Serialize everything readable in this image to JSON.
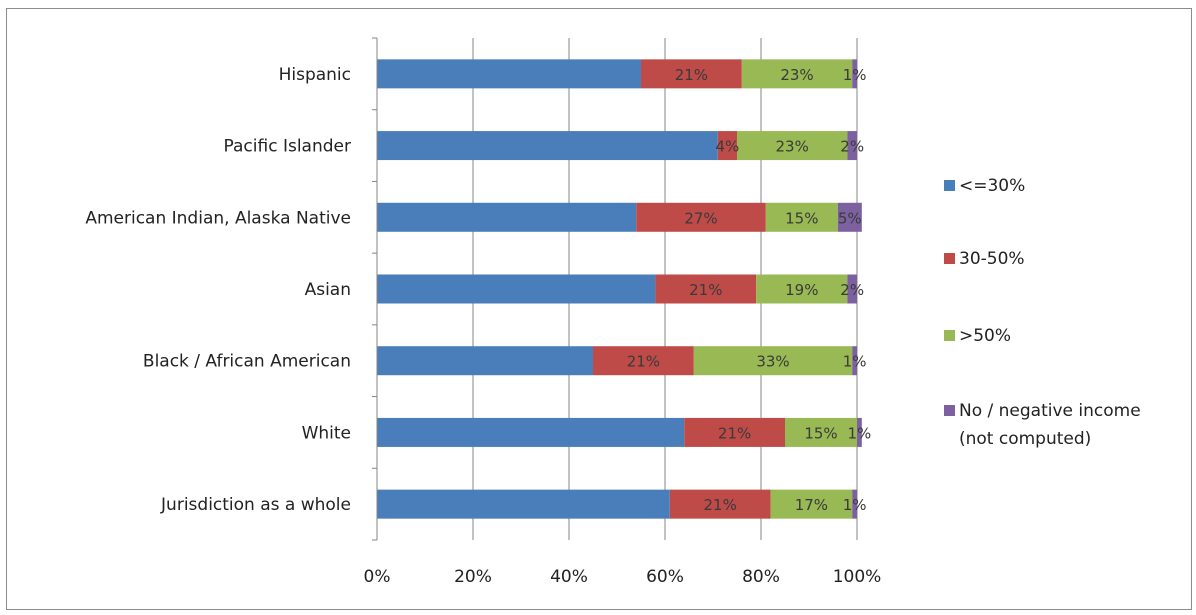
{
  "chart_data": {
    "type": "bar",
    "orientation": "horizontal",
    "stacked": true,
    "categories": [
      "Hispanic",
      "Pacific Islander",
      "American Indian, Alaska Native",
      "Asian",
      "Black / African American",
      "White",
      "Jurisdiction as a whole"
    ],
    "series": [
      {
        "name": "<=30%",
        "color": "#4a7ebb",
        "values": [
          55,
          71,
          54,
          58,
          45,
          64,
          61
        ],
        "labels": [
          "",
          "",
          "",
          "",
          "",
          "",
          ""
        ]
      },
      {
        "name": "30-50%",
        "color": "#be4b48",
        "values": [
          21,
          4,
          27,
          21,
          21,
          21,
          21
        ],
        "labels": [
          "21%",
          "4%",
          "27%",
          "21%",
          "21%",
          "21%",
          "21%"
        ]
      },
      {
        "name": ">50%",
        "color": "#98b954",
        "values": [
          23,
          23,
          15,
          19,
          33,
          15,
          17
        ],
        "labels": [
          "23%",
          "23%",
          "15%",
          "19%",
          "33%",
          "15%",
          "17%"
        ]
      },
      {
        "name": "No / negative income (not computed)",
        "color": "#7d60a0",
        "values": [
          1,
          2,
          5,
          2,
          1,
          1,
          1
        ],
        "labels": [
          "1%",
          "2%",
          "5%",
          "2%",
          "1%",
          "1%",
          "1%"
        ]
      }
    ],
    "x_ticks": [
      "0%",
      "20%",
      "40%",
      "60%",
      "80%",
      "100%"
    ],
    "xlim": [
      0,
      100
    ],
    "grid": "vertical",
    "legend_position": "right",
    "title": "",
    "xlabel": "",
    "ylabel": ""
  }
}
